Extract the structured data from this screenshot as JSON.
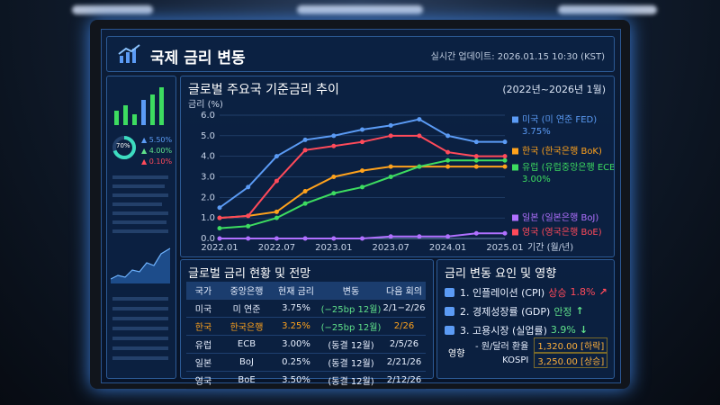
{
  "header": {
    "title": "국제 금리 변동",
    "updated": "실시간 업데이트: 2026.01.15 10:30 (KST)"
  },
  "sidebar": {
    "donut": "70%",
    "stats": [
      "5.50%",
      "4.00%",
      "0.10%"
    ]
  },
  "chart_data": {
    "type": "line",
    "title": "글로벌 주요국 기준금리 추이",
    "subtitle": "(2022년~2026년 1월)",
    "y_label": "금리 (%)",
    "x_label": "기간 (월/년)",
    "categories": [
      "2022.01",
      null,
      "2022.07",
      null,
      "2023.01",
      null,
      "2023.07",
      null,
      "2024.01",
      null,
      "2025.01"
    ],
    "series": [
      {
        "name": "미국 (미 연준 FED)",
        "note": "3.75%",
        "color": "#5b9bf5",
        "values": [
          1.5,
          2.5,
          4.0,
          4.8,
          5.0,
          5.3,
          5.5,
          5.8,
          5.0,
          4.7,
          4.7
        ]
      },
      {
        "name": "한국 (한국은행 BoK)",
        "color": "#ffa21c",
        "values": [
          1.0,
          1.1,
          1.3,
          2.3,
          3.0,
          3.3,
          3.5,
          3.5,
          3.5,
          3.5,
          3.5
        ]
      },
      {
        "name": "유럽 (유럽중앙은행 ECB)",
        "note": "3.00%",
        "color": "#3ddc60",
        "values": [
          0.5,
          0.6,
          1.0,
          1.7,
          2.2,
          2.5,
          3.0,
          3.5,
          3.8,
          3.8,
          3.8
        ]
      },
      {
        "name": "일본 (일본은행 BoJ)",
        "color": "#b070ff",
        "values": [
          0,
          0,
          0,
          0,
          0,
          0,
          0.1,
          0.1,
          0.1,
          0.25,
          0.25
        ]
      },
      {
        "name": "영국 (영국은행 BoE)",
        "color": "#ff4a5a",
        "values": [
          1.0,
          1.1,
          2.8,
          4.3,
          4.5,
          4.7,
          5.0,
          5.0,
          4.2,
          4.0,
          4.0
        ]
      }
    ],
    "ylim": [
      0,
      6
    ],
    "yticks": [
      {
        "value": 0,
        "label": "0.0"
      },
      {
        "value": 1,
        "label": "1.0"
      },
      {
        "value": 2,
        "label": "2.0"
      },
      {
        "value": 3,
        "label": "3.0"
      },
      {
        "value": 4,
        "label": "4.0"
      },
      {
        "value": 5,
        "label": "5.0"
      },
      {
        "value": 6,
        "label": "6.0"
      }
    ],
    "grid": true
  },
  "table": {
    "title": "글로벌 금리 현황 및 전망",
    "columns": [
      "국가",
      "중앙은행",
      "현재 금리",
      "변동",
      "다음 회의"
    ],
    "rows": [
      [
        "미국",
        "미 연준",
        "3.75%",
        "(−25bp 12월)",
        "2/1−2/26"
      ],
      [
        "한국",
        "한국은행",
        "3.25%",
        "(−25bp 12월)",
        "2/26"
      ],
      [
        "유럽",
        "ECB",
        "3.00%",
        "(동결 12월)",
        "2/5/26"
      ],
      [
        "일본",
        "BoJ",
        "0.25%",
        "(동결 12월)",
        "2/21/26"
      ],
      [
        "영국",
        "BoE",
        "3.50%",
        "(동결 12월)",
        "2/12/26"
      ]
    ]
  },
  "factors": {
    "title": "금리 변동 요인 및 영향",
    "items": [
      {
        "label": "1. 인플레이션 (CPI)",
        "status": "상승",
        "value": "1.8%"
      },
      {
        "label": "2. 경제성장률 (GDP)",
        "status": "안정"
      },
      {
        "label": "3. 고용시장 (실업률)",
        "value": "3.9%"
      }
    ],
    "impact": {
      "label": "영향",
      "items": [
        {
          "name": "- 원/달러 환율",
          "value": "1,320.00 [하락]"
        },
        {
          "name": "KOSPI",
          "value": "3,250.00 [상승]"
        }
      ]
    }
  }
}
